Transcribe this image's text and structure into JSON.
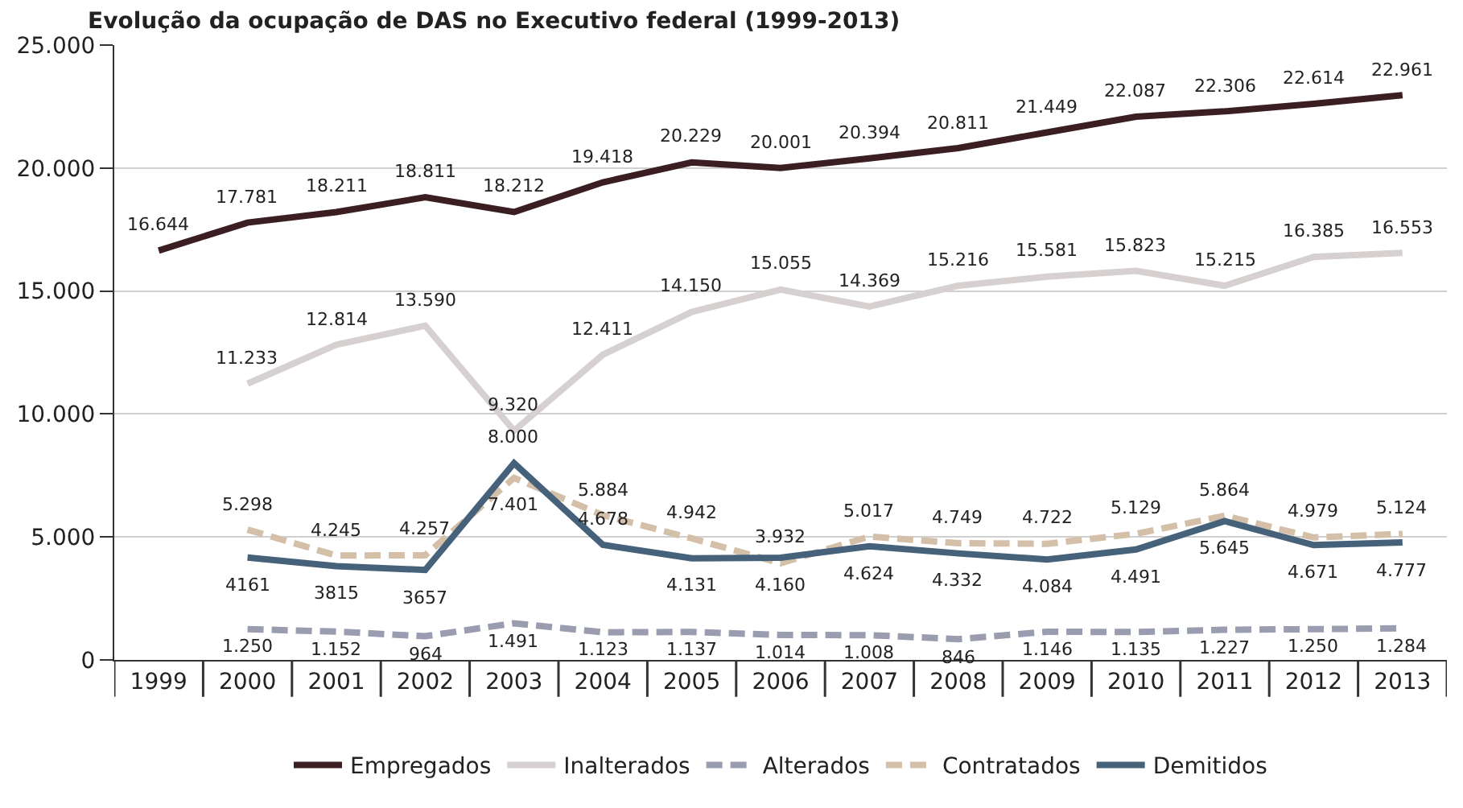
{
  "chart_data": {
    "type": "line",
    "title": "Evolução da ocupação de DAS no Executivo federal (1999-2013)",
    "categories": [
      "1999",
      "2000",
      "2001",
      "2002",
      "2003",
      "2004",
      "2005",
      "2006",
      "2007",
      "2008",
      "2009",
      "2010",
      "2011",
      "2012",
      "2013"
    ],
    "series": [
      {
        "name": "Empregados",
        "color": "#3b1e22",
        "line_style": "solid",
        "values": [
          16644,
          17781,
          18211,
          18811,
          18212,
          19418,
          20229,
          20001,
          20394,
          20811,
          21449,
          22087,
          22306,
          22614,
          22961
        ],
        "value_labels": [
          "16.644",
          "17.781",
          "18.211",
          "18.811",
          "18.212",
          "19.418",
          "20.229",
          "20.001",
          "20.394",
          "20.811",
          "21.449",
          "22.087",
          "22.306",
          "22.614",
          "22.961"
        ]
      },
      {
        "name": "Inalterados",
        "color": "#d6d0d0",
        "line_style": "solid",
        "values": [
          null,
          11233,
          12814,
          13590,
          9320,
          12411,
          14150,
          15055,
          14369,
          15216,
          15581,
          15823,
          15215,
          16385,
          16553
        ],
        "value_labels": [
          null,
          "11.233",
          "12.814",
          "13.590",
          "9.320",
          "12.411",
          "14.150",
          "15.055",
          "14.369",
          "15.216",
          "15.581",
          "15.823",
          "15.215",
          "16.385",
          "16.553"
        ]
      },
      {
        "name": "Alterados",
        "color": "#9a9cb0",
        "line_style": "dashed",
        "values": [
          null,
          1250,
          1152,
          964,
          1491,
          1123,
          1137,
          1014,
          1008,
          846,
          1146,
          1135,
          1227,
          1250,
          1284
        ],
        "value_labels": [
          null,
          "1.250",
          "1.152",
          "964",
          "1.491",
          "1.123",
          "1.137",
          "1.014",
          "1.008",
          "846",
          "1.146",
          "1.135",
          "1.227",
          "1.250",
          "1.284"
        ]
      },
      {
        "name": "Contratados",
        "color": "#d4bfa8",
        "line_style": "dashed",
        "values": [
          null,
          5298,
          4245,
          4257,
          7401,
          5884,
          4942,
          3932,
          5017,
          4749,
          4722,
          5129,
          5864,
          4979,
          5124
        ],
        "value_labels": [
          null,
          "5.298",
          "4.245",
          "4.257",
          "7.401",
          "5.884",
          "4.942",
          "3.932",
          "5.017",
          "4.749",
          "4.722",
          "5.129",
          "5.864",
          "4.979",
          "5.124"
        ]
      },
      {
        "name": "Demitidos",
        "color": "#46627a",
        "line_style": "solid",
        "values": [
          null,
          4161,
          3815,
          3657,
          8000,
          4678,
          4131,
          4160,
          4624,
          4332,
          4084,
          4491,
          5645,
          4671,
          4777
        ],
        "value_labels": [
          null,
          "4161",
          "3815",
          "3657",
          "8.000",
          "4.678",
          "4.131",
          "4.160",
          "4.624",
          "4.332",
          "4.084",
          "4.491",
          "5.645",
          "4.671",
          "4.777"
        ]
      }
    ],
    "ylim": [
      0,
      25000
    ],
    "yticks": [
      {
        "value": 0,
        "label": "0"
      },
      {
        "value": 5000,
        "label": "5.000"
      },
      {
        "value": 10000,
        "label": "10.000"
      },
      {
        "value": 15000,
        "label": "15.000"
      },
      {
        "value": 20000,
        "label": "20.000"
      },
      {
        "value": 25000,
        "label": "25.000"
      }
    ],
    "grid": "y",
    "legend": "bottom",
    "marker": "none"
  }
}
